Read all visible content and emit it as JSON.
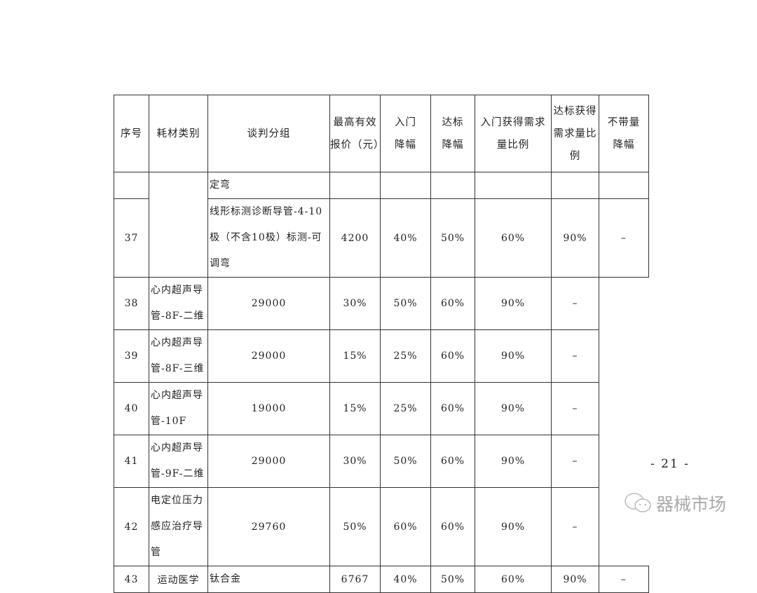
{
  "table": {
    "headers": [
      "序号",
      "耗材类别",
      "谈判分组",
      "最高有效报价（元）",
      "入门降幅",
      "达标降幅",
      "入门获得需求量比例",
      "达标获得需求量比例",
      "不带量降幅"
    ],
    "continuation_row": {
      "group": "定弯"
    },
    "rows": [
      {
        "no": "37",
        "category": "",
        "group": "线形标测诊断导管-4-10极（不含10极）标测-可调弯",
        "price": "4200",
        "entry": "40%",
        "target": "50%",
        "entry_ratio": "60%",
        "target_ratio": "90%",
        "no_volume": "–"
      },
      {
        "no": "38",
        "category": "",
        "group": "心内超声导管-8F-二维",
        "price": "29000",
        "entry": "30%",
        "target": "50%",
        "entry_ratio": "60%",
        "target_ratio": "90%",
        "no_volume": "–"
      },
      {
        "no": "39",
        "category": "",
        "group": "心内超声导管-8F-三维",
        "price": "29000",
        "entry": "15%",
        "target": "25%",
        "entry_ratio": "60%",
        "target_ratio": "90%",
        "no_volume": "–"
      },
      {
        "no": "40",
        "category": "",
        "group": "心内超声导管-10F",
        "price": "19000",
        "entry": "15%",
        "target": "25%",
        "entry_ratio": "60%",
        "target_ratio": "90%",
        "no_volume": "–"
      },
      {
        "no": "41",
        "category": "",
        "group": "心内超声导管-9F-二维",
        "price": "29000",
        "entry": "30%",
        "target": "50%",
        "entry_ratio": "60%",
        "target_ratio": "90%",
        "no_volume": "–"
      },
      {
        "no": "42",
        "category": "",
        "group": "电定位压力感应治疗导管",
        "price": "29760",
        "entry": "50%",
        "target": "60%",
        "entry_ratio": "60%",
        "target_ratio": "90%",
        "no_volume": "–"
      },
      {
        "no": "43",
        "category": "运动医学",
        "group": "钛合金",
        "price": "6767",
        "entry": "40%",
        "target": "50%",
        "entry_ratio": "60%",
        "target_ratio": "90%",
        "no_volume": "–"
      }
    ]
  },
  "page_number": "- 21 -",
  "watermark": {
    "text": "器械市场",
    "icon": "wechat-icon"
  }
}
